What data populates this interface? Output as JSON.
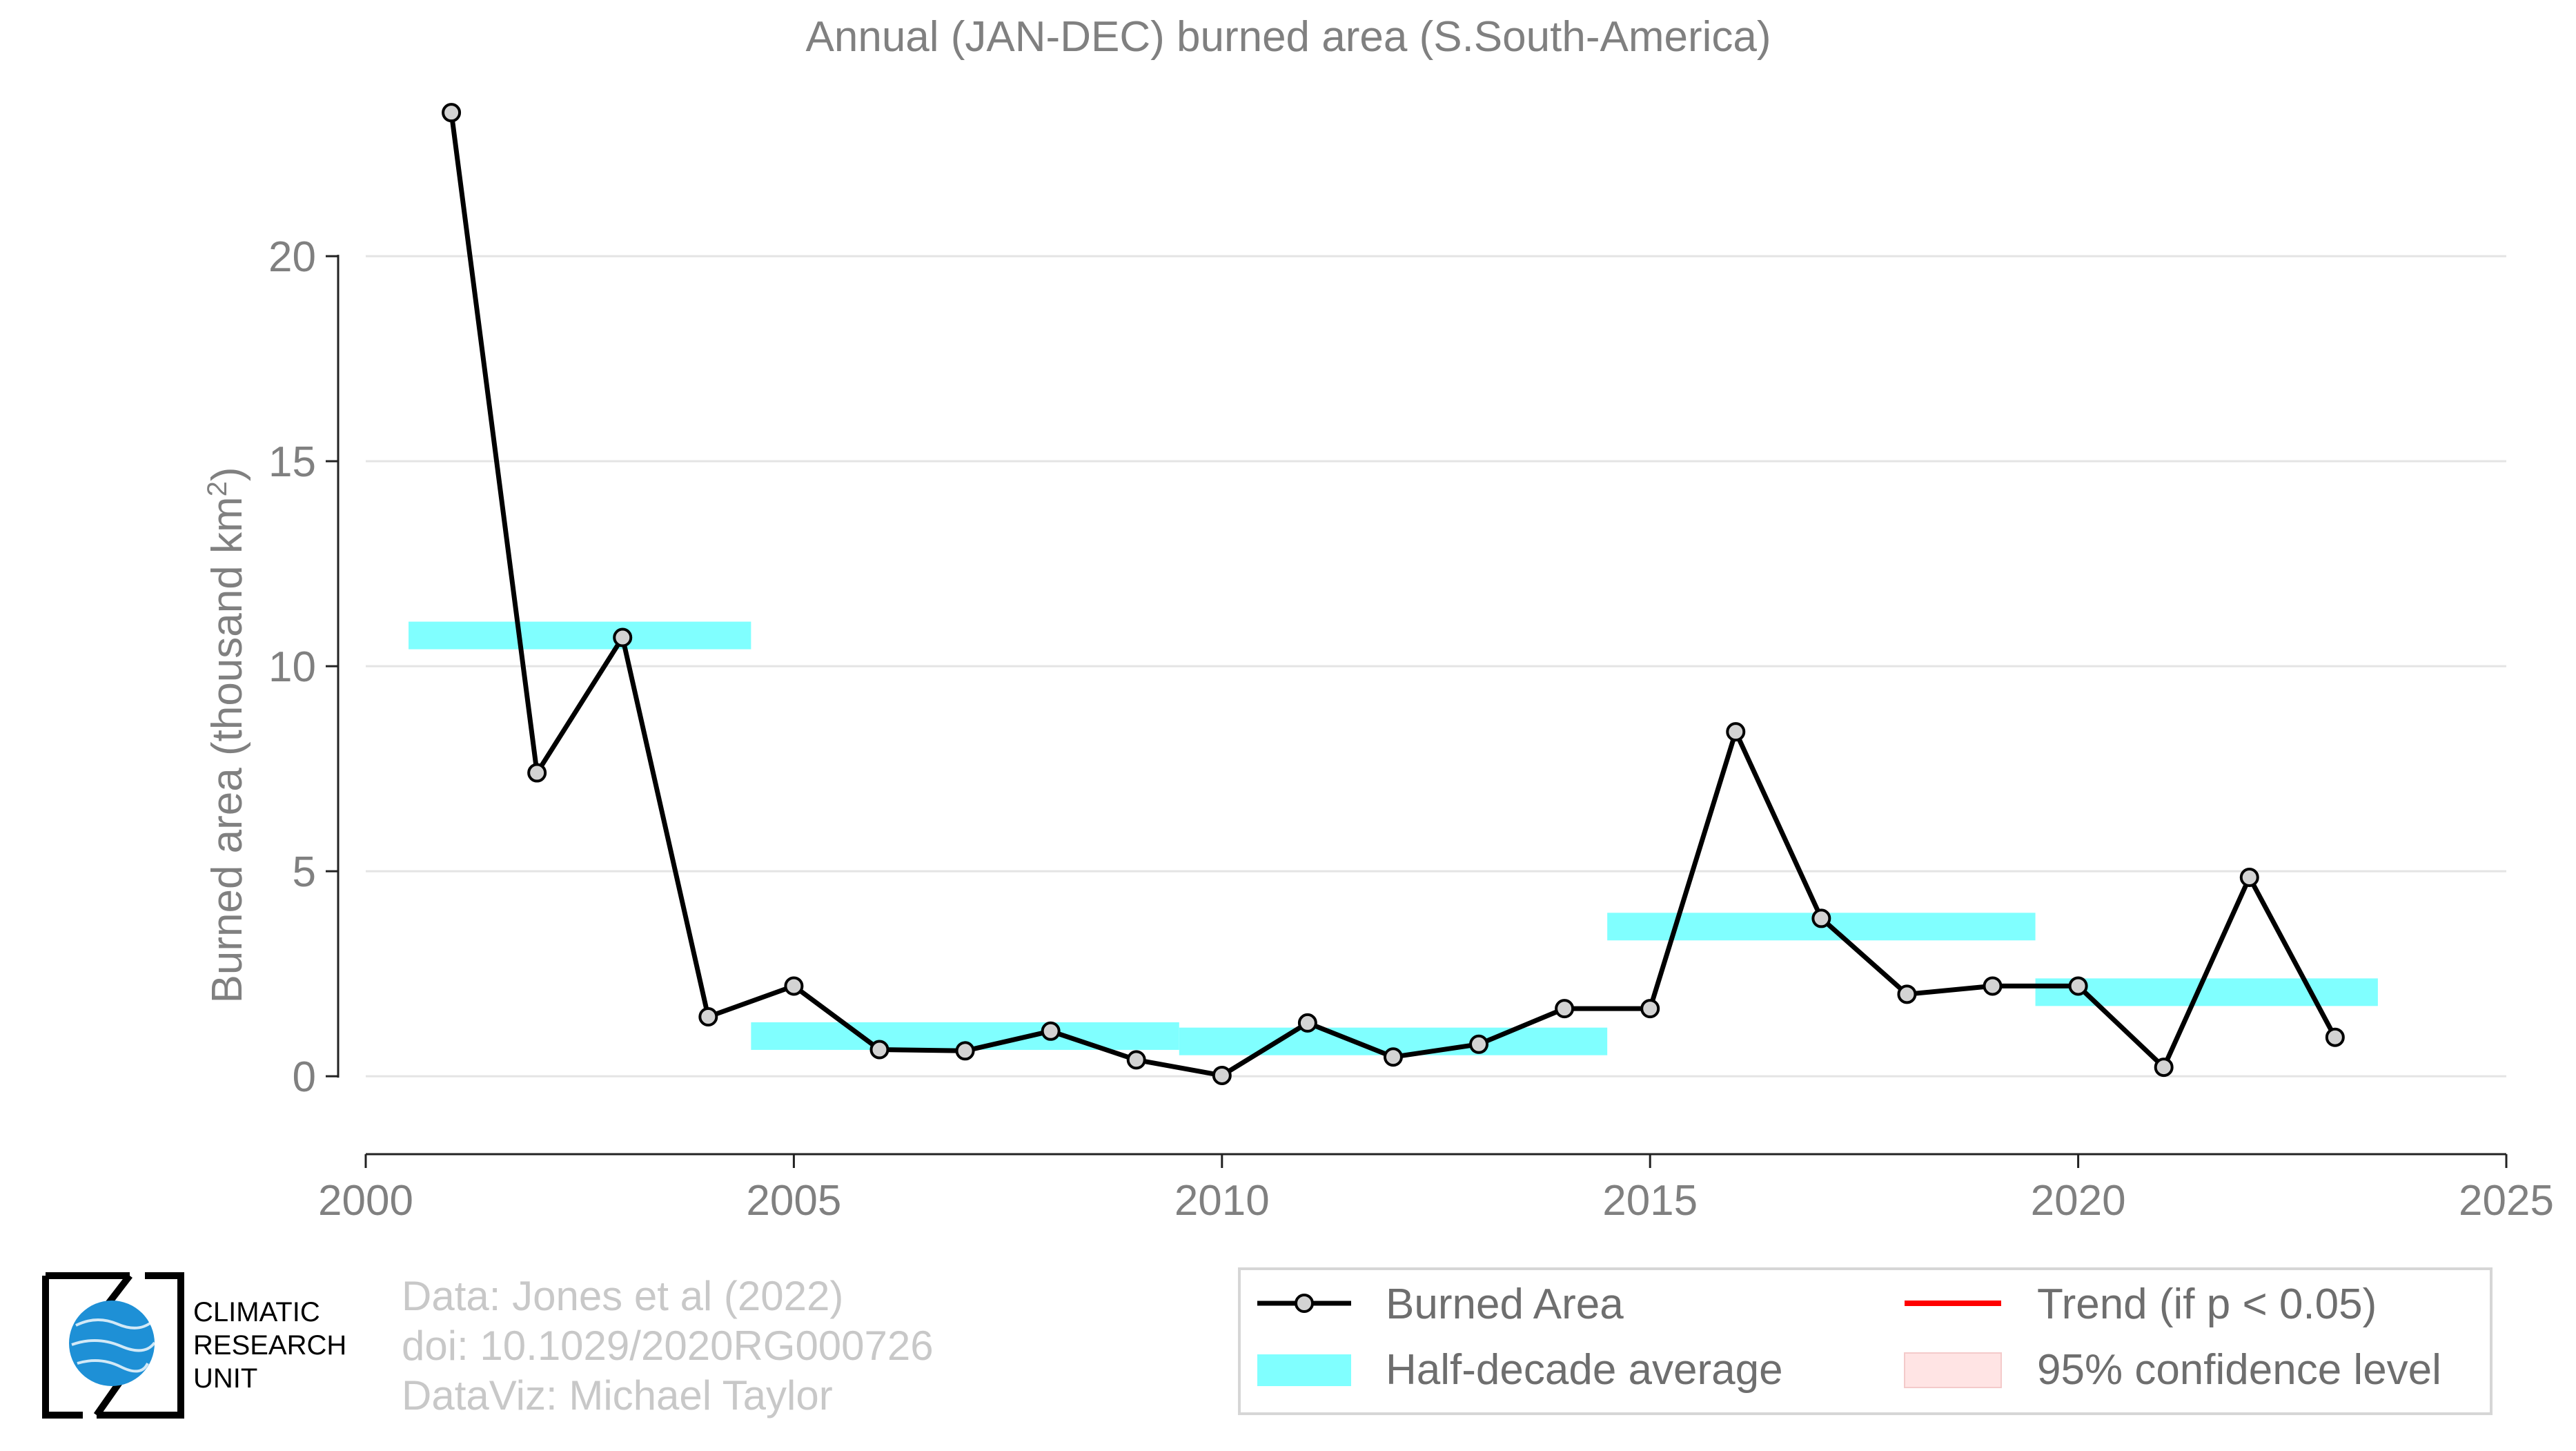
{
  "chart_data": {
    "type": "line",
    "title": "Annual (JAN-DEC) burned area (S.South-America)",
    "ylabel_main": "Burned area (thousand km",
    "ylabel_sup": "2",
    "ylabel_end": ")",
    "xlabel": "",
    "xlim": [
      2000,
      2025
    ],
    "ylim": [
      -1.9,
      24.9
    ],
    "xticks": [
      2000,
      2005,
      2010,
      2015,
      2020,
      2025
    ],
    "yticks": [
      0,
      5,
      10,
      15,
      20
    ],
    "grid": "horizontal",
    "series": [
      {
        "name": "Burned Area",
        "color": "#000000",
        "marker_fill": "#d3d3d3",
        "x": [
          2001,
          2002,
          2003,
          2004,
          2005,
          2006,
          2007,
          2008,
          2009,
          2010,
          2011,
          2012,
          2013,
          2014,
          2015,
          2016,
          2017,
          2018,
          2019,
          2020,
          2021,
          2022,
          2023
        ],
        "y": [
          23.5,
          7.4,
          10.7,
          1.45,
          2.2,
          0.65,
          0.62,
          1.1,
          0.4,
          0.02,
          1.3,
          0.47,
          0.78,
          1.65,
          1.65,
          8.4,
          3.85,
          2.0,
          2.2,
          2.2,
          0.22,
          4.85,
          0.95
        ]
      }
    ],
    "half_decade_average": {
      "name": "Half-decade average",
      "color": "#80ffff",
      "segments": [
        {
          "x0": 2000.5,
          "x1": 2004.5,
          "y": 10.75
        },
        {
          "x0": 2004.5,
          "x1": 2009.5,
          "y": 0.98
        },
        {
          "x0": 2009.5,
          "x1": 2014.5,
          "y": 0.85
        },
        {
          "x0": 2014.5,
          "x1": 2019.5,
          "y": 3.65
        },
        {
          "x0": 2019.5,
          "x1": 2023.5,
          "y": 2.05
        }
      ]
    },
    "legend": {
      "placement": "bottom-right",
      "items": [
        {
          "key": "burned",
          "label": "Burned Area",
          "color": "#000000"
        },
        {
          "key": "trend",
          "label": "Trend (if p < 0.05)",
          "color": "#ff0000"
        },
        {
          "key": "halfdecade",
          "label": "Half-decade average",
          "color": "#80ffff"
        },
        {
          "key": "confidence",
          "label": "95% confidence level",
          "color": "#ffe4e4"
        }
      ]
    }
  },
  "credits": {
    "line1": "Data: Jones et al (2022)",
    "line2": "doi: 10.1029/2020RG000726",
    "line3": "DataViz: Michael Taylor"
  },
  "logo": {
    "line1": "CLIMATIC",
    "line2": "RESEARCH",
    "line3": "UNIT",
    "globe_color": "#1e90d6"
  }
}
